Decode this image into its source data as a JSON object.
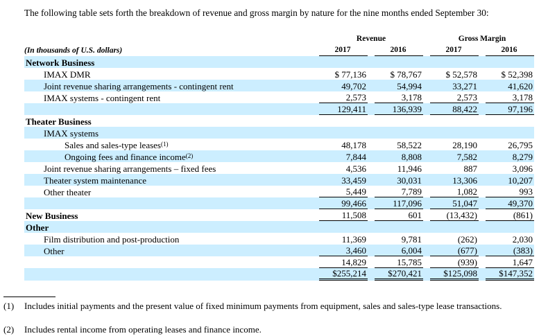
{
  "intro": "The following table sets forth the breakdown of revenue and gross margin by nature for the nine months ended September 30:",
  "table": {
    "unit_label": "(In thousands of U.S. dollars)",
    "groups": [
      "Revenue",
      "Gross Margin"
    ],
    "years": [
      "2017",
      "2016",
      "2017",
      "2016"
    ],
    "rows": [
      {
        "label": "Network Business"
      },
      {
        "label": "IMAX DMR",
        "values": [
          "$ 77,136",
          "$ 78,767",
          "$ 52,578",
          "$ 52,398"
        ]
      },
      {
        "label": "Joint revenue sharing arrangements - contingent rent",
        "values": [
          "49,702",
          "54,994",
          "33,271",
          "41,620"
        ]
      },
      {
        "label": "IMAX systems - contingent rent",
        "values": [
          "2,573",
          "3,178",
          "2,573",
          "3,178"
        ]
      },
      {
        "values": [
          "129,411",
          "136,939",
          "88,422",
          "97,196"
        ]
      },
      {
        "label": "Theater Business"
      },
      {
        "label": "IMAX systems"
      },
      {
        "label": "Sales and sales-type leases",
        "note": "(1)",
        "values": [
          "48,178",
          "58,522",
          "28,190",
          "26,795"
        ]
      },
      {
        "label": "Ongoing fees and finance income",
        "note": "(2)",
        "values": [
          "7,844",
          "8,808",
          "7,582",
          "8,279"
        ]
      },
      {
        "label": "Joint revenue sharing arrangements – fixed fees",
        "values": [
          "4,536",
          "11,946",
          "887",
          "3,096"
        ]
      },
      {
        "label": "Theater system maintenance",
        "values": [
          "33,459",
          "30,031",
          "13,306",
          "10,207"
        ]
      },
      {
        "label": "Other theater",
        "values": [
          "5,449",
          "7,789",
          "1,082",
          "993"
        ]
      },
      {
        "values": [
          "99,466",
          "117,096",
          "51,047",
          "49,370"
        ]
      },
      {
        "label": "New Business",
        "values": [
          "11,508",
          "601",
          "(13,432)",
          "(861)"
        ]
      },
      {
        "label": "Other"
      },
      {
        "label": "Film distribution and post-production",
        "values": [
          "11,369",
          "9,781",
          "(262)",
          "2,030"
        ]
      },
      {
        "label": "Other",
        "values": [
          "3,460",
          "6,004",
          "(677)",
          "(383)"
        ]
      },
      {
        "values": [
          "14,829",
          "15,785",
          "(939)",
          "1,647"
        ]
      },
      {
        "values": [
          "$255,214",
          "$270,421",
          "$125,098",
          "$147,352"
        ]
      }
    ]
  },
  "footnotes": [
    {
      "marker": "(1)",
      "text": "Includes initial payments and the present value of fixed minimum payments from equipment, sales and sales-type lease transactions."
    },
    {
      "marker": "(2)",
      "text": "Includes rental income from operating leases and finance income."
    }
  ]
}
